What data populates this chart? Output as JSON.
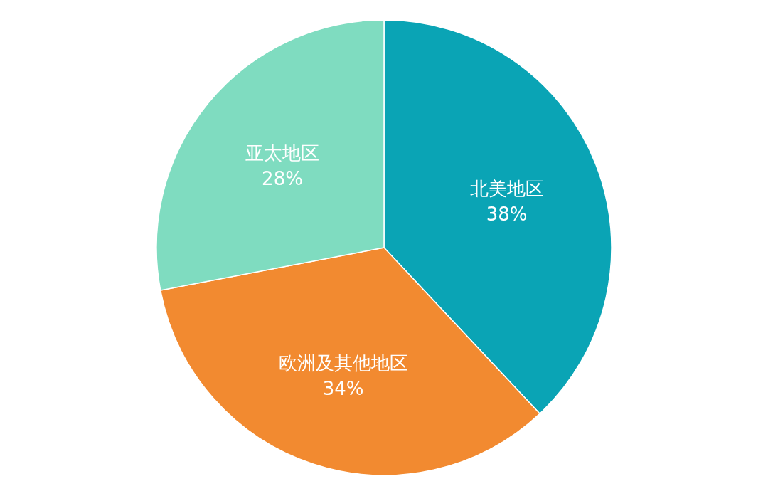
{
  "chart_data": {
    "type": "pie",
    "categories": [
      "北美地区",
      "欧洲及其他地区",
      "亚太地区"
    ],
    "values": [
      38,
      34,
      28
    ],
    "colors": [
      "#0aa4b5",
      "#f28a30",
      "#7fdcc0"
    ],
    "value_labels": [
      "38%",
      "34%",
      "28%"
    ]
  }
}
